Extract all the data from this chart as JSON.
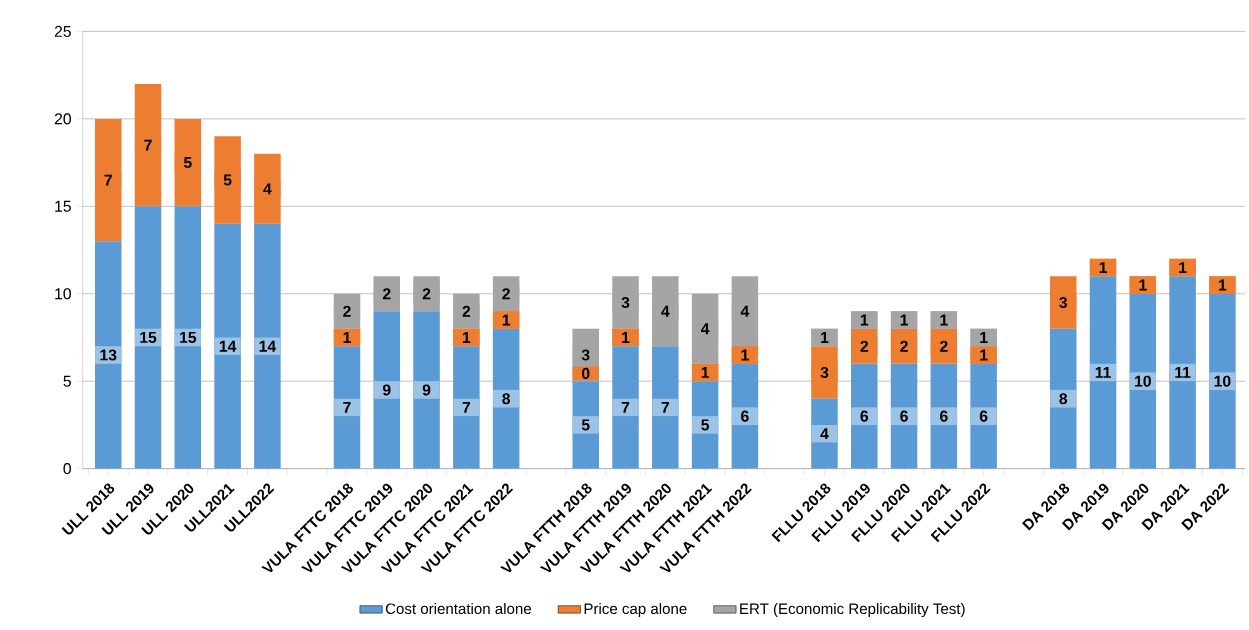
{
  "chart_data": {
    "type": "bar",
    "stacked": true,
    "categories": [
      "ULL 2018",
      "ULL 2019",
      "ULL 2020",
      "ULL2021",
      "ULL2022",
      null,
      "VULA FTTC 2018",
      "VULA FTTC 2019",
      "VULA FTTC 2020",
      "VULA FTTC 2021",
      "VULA FTTC 2022",
      null,
      "VULA FTTH 2018",
      "VULA FTTH 2019",
      "VULA FTTH 2020",
      "VULA FTTH 2021",
      "VULA FTTH 2022",
      null,
      "FLLU 2018",
      "FLLU 2019",
      "FLLU 2020",
      "FLLU 2021",
      "FLLU 2022",
      null,
      "DA 2018",
      "DA 2019",
      "DA 2020",
      "DA 2021",
      "DA 2022"
    ],
    "series": [
      {
        "name": "Cost orientation alone",
        "color": "#5b9bd5",
        "values": [
          13,
          15,
          15,
          14,
          14,
          null,
          7,
          9,
          9,
          7,
          8,
          null,
          5,
          7,
          7,
          5,
          6,
          null,
          4,
          6,
          6,
          6,
          6,
          null,
          8,
          11,
          10,
          11,
          10
        ],
        "value_labels": [
          "13",
          "15",
          "15",
          "14",
          "14",
          null,
          "7",
          "9",
          "9",
          "7",
          "8",
          null,
          "5",
          "7",
          "7",
          "5",
          "6",
          null,
          "4",
          "6",
          "6",
          "6",
          "6",
          null,
          "8",
          "11",
          "10",
          "11",
          "10"
        ]
      },
      {
        "name": "Price cap alone",
        "color": "#ed7d31",
        "values": [
          7,
          7,
          5,
          5,
          4,
          null,
          1,
          0,
          0,
          1,
          1,
          null,
          0,
          1,
          0,
          1,
          1,
          null,
          3,
          2,
          2,
          2,
          1,
          null,
          3,
          1,
          1,
          1,
          1
        ],
        "value_labels": [
          "7",
          "7",
          "5",
          "5",
          "4",
          null,
          "1",
          null,
          null,
          "1",
          "1",
          null,
          "0",
          "1",
          null,
          "1",
          "1",
          null,
          "3",
          "2",
          "2",
          "2",
          "1",
          null,
          "3",
          "1",
          "1",
          "1",
          "1"
        ]
      },
      {
        "name": "ERT (Economic Replicability Test)",
        "color": "#a5a5a5",
        "values": [
          0,
          0,
          0,
          0,
          0,
          null,
          2,
          2,
          2,
          2,
          2,
          null,
          3,
          3,
          4,
          4,
          4,
          null,
          1,
          1,
          1,
          1,
          1,
          null,
          0,
          0,
          0,
          0,
          0
        ],
        "value_labels": [
          null,
          null,
          null,
          null,
          null,
          null,
          "2",
          "2",
          "2",
          "2",
          "2",
          null,
          "3",
          "3",
          "4",
          "4",
          "4",
          null,
          "1",
          "1",
          "1",
          "1",
          "1",
          null,
          null,
          null,
          null,
          null,
          null
        ]
      }
    ],
    "ylim": [
      0,
      25
    ],
    "yticks": [
      0,
      5,
      10,
      15,
      20,
      25
    ],
    "grid": "y",
    "legend": "bottom"
  }
}
